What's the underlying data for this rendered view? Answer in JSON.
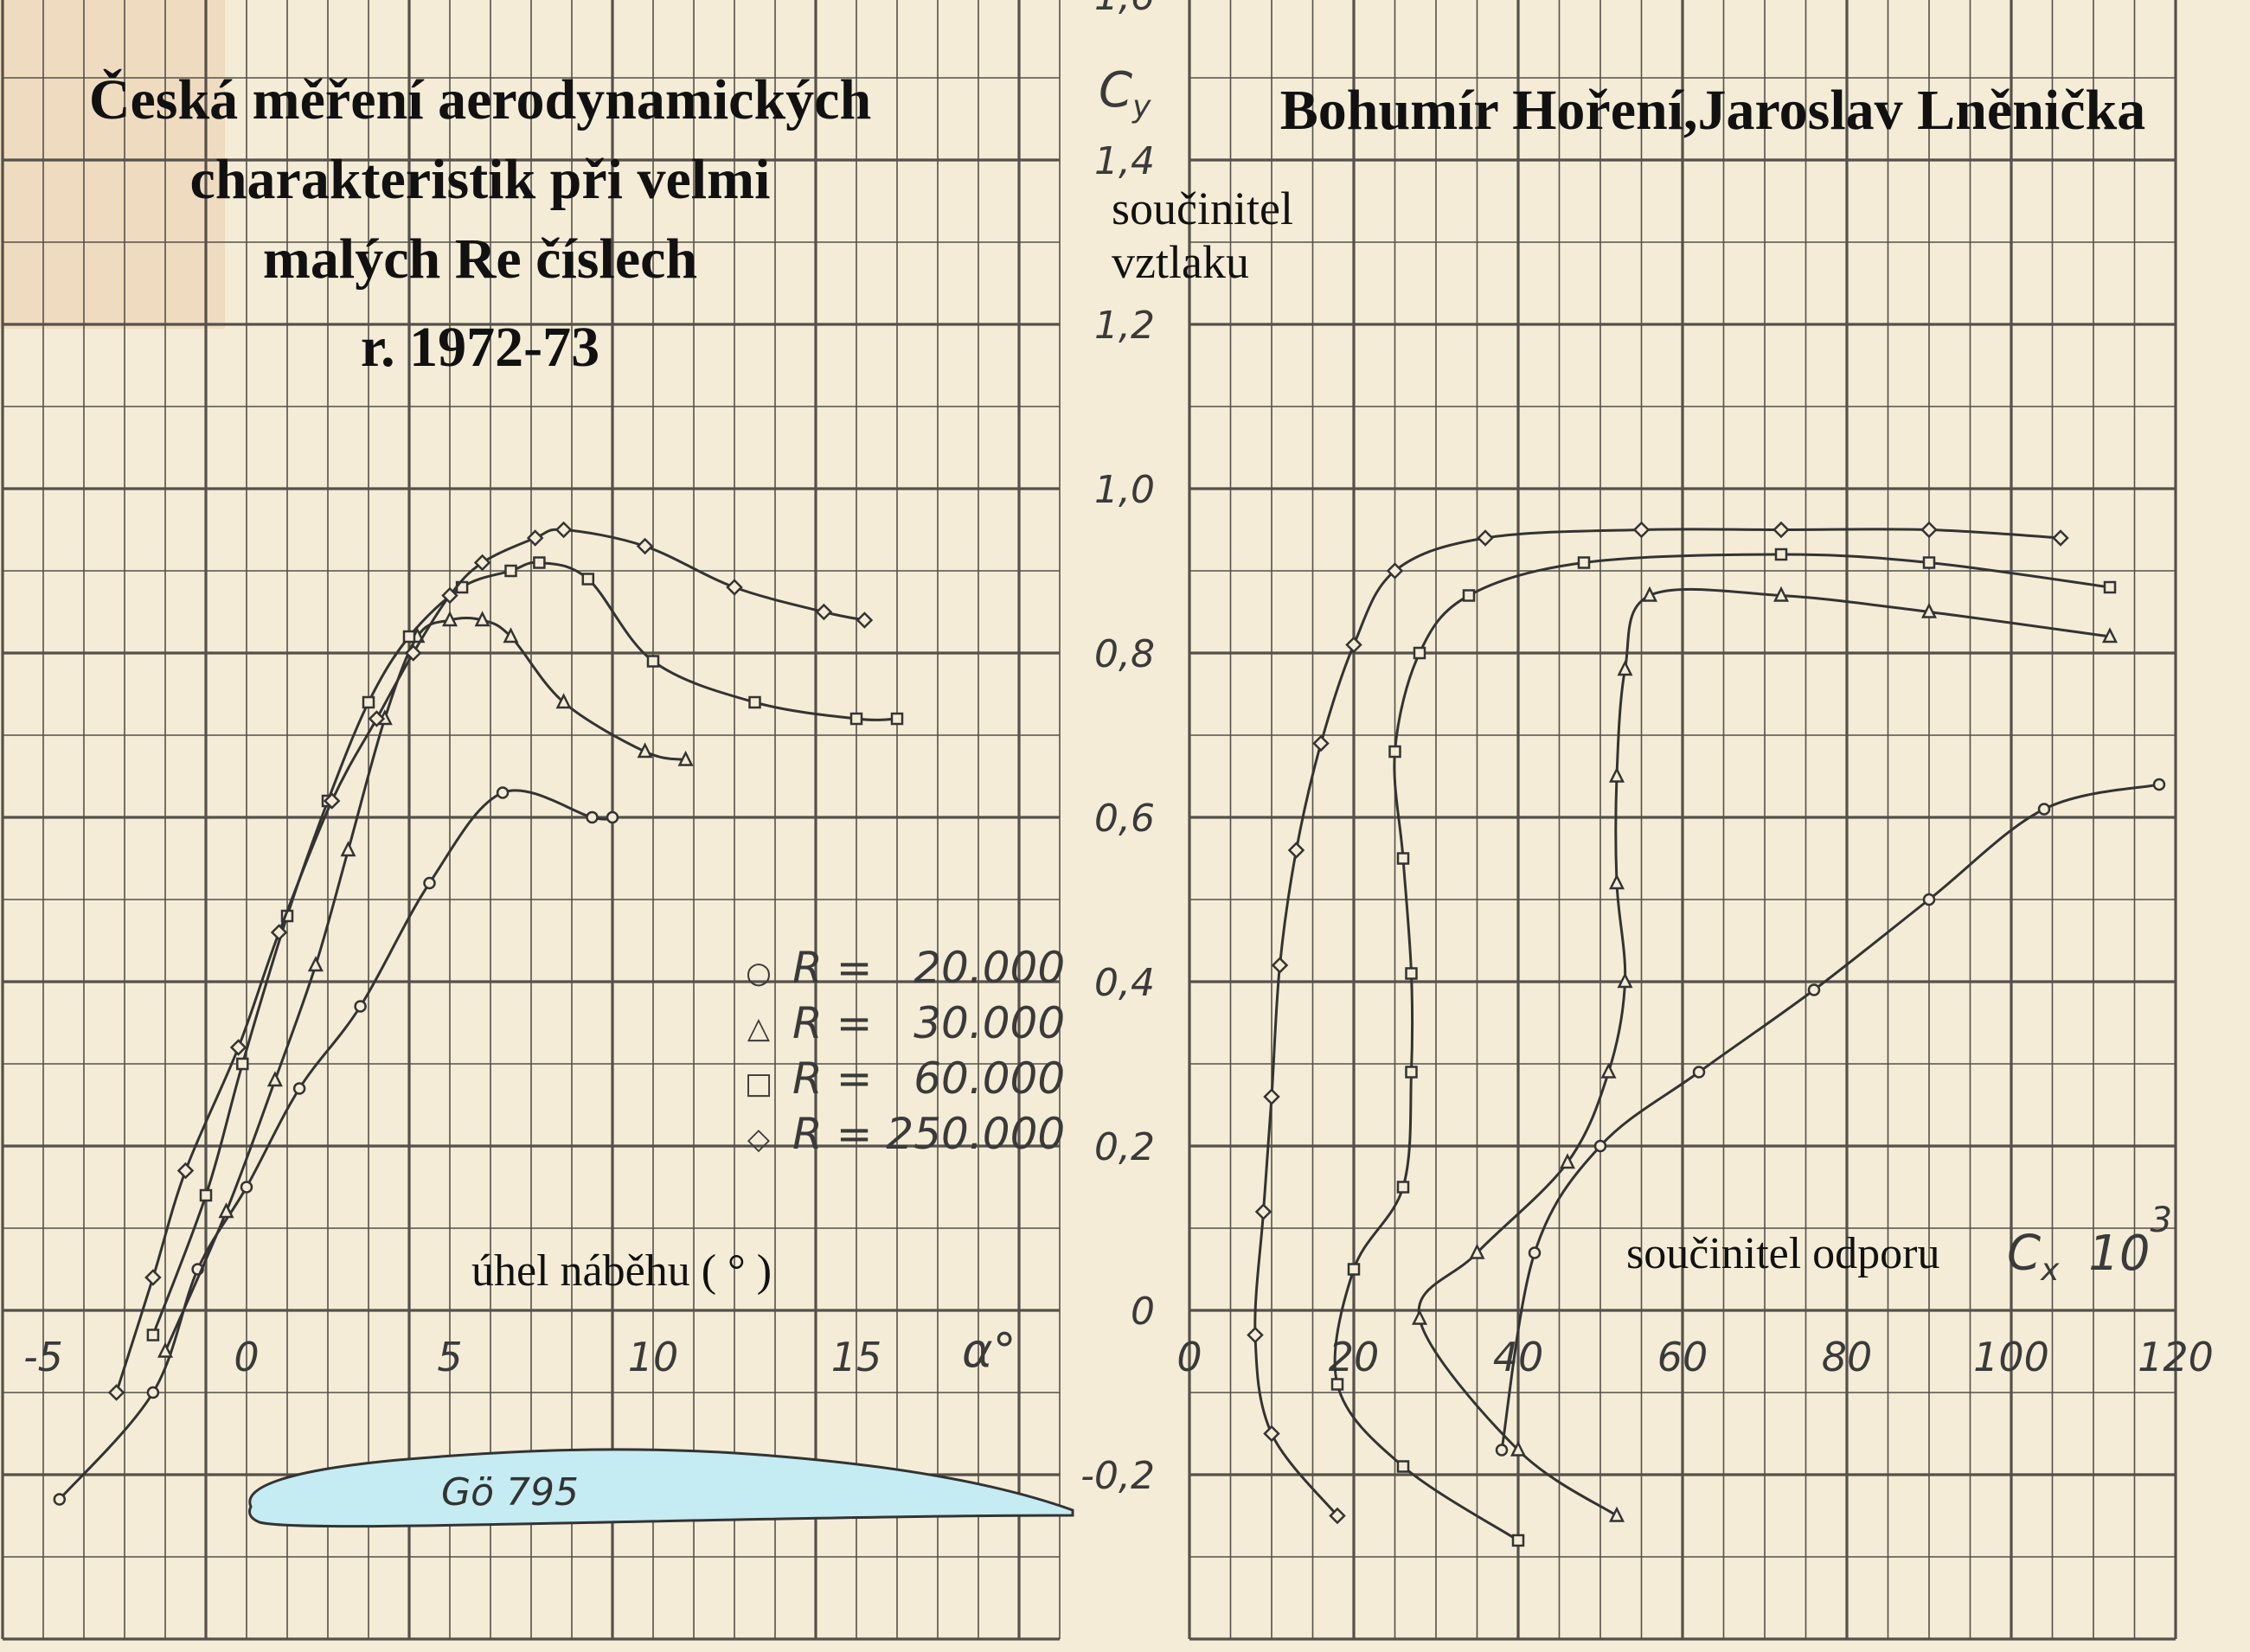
{
  "title": {
    "lines": [
      "Česká měření aerodynamických",
      "charakteristik při velmi",
      "malých Re číslech",
      "r. 1972-73"
    ],
    "authors": "Bohumír Hoření,Jaroslav Lněnička"
  },
  "airfoil": {
    "name": "Gö 795",
    "fill": "#c4ecf2"
  },
  "colors": {
    "paper": "#f4ecd6",
    "grid": "#55504a",
    "ink": "#3a3a3a",
    "text": "#111111"
  },
  "chart_data": [
    {
      "type": "line",
      "description_axes": "lift coefficient vs angle of attack",
      "xlabel": "úhel náběhu ( ° )",
      "x_symbol": "α°",
      "ylabel": "",
      "xlim": [
        -5,
        20
      ],
      "ylim": [
        -0.4,
        1.6
      ],
      "x_ticks": [
        "-5",
        "0",
        "5",
        "10",
        "15"
      ],
      "x_tick_values": [
        -5,
        0,
        5,
        10,
        15
      ],
      "legend_position": "right-middle",
      "series": [
        {
          "name": "R =   20.000",
          "marker": "circle",
          "x": [
            -4.6,
            -2.3,
            -1.2,
            0,
            1.3,
            2.8,
            4.5,
            6.3,
            8.5,
            9.0
          ],
          "y": [
            -0.23,
            -0.1,
            0.05,
            0.15,
            0.27,
            0.37,
            0.52,
            0.63,
            0.6,
            0.6
          ]
        },
        {
          "name": "R =   30.000",
          "marker": "triangle",
          "x": [
            -2.0,
            -0.5,
            0.7,
            1.7,
            2.5,
            3.4,
            4.2,
            5.0,
            5.8,
            6.5,
            7.8,
            9.8,
            10.8
          ],
          "y": [
            -0.05,
            0.12,
            0.28,
            0.42,
            0.56,
            0.72,
            0.82,
            0.84,
            0.84,
            0.82,
            0.74,
            0.68,
            0.67
          ]
        },
        {
          "name": "R =   60.000",
          "marker": "square",
          "x": [
            -2.3,
            -1.0,
            -0.1,
            1.0,
            2.0,
            3.0,
            4.0,
            5.3,
            6.5,
            7.2,
            8.4,
            10.0,
            12.5,
            15.0,
            16.0
          ],
          "y": [
            -0.03,
            0.14,
            0.3,
            0.48,
            0.62,
            0.74,
            0.82,
            0.88,
            0.9,
            0.91,
            0.89,
            0.79,
            0.74,
            0.72,
            0.72
          ]
        },
        {
          "name": "R = 250.000",
          "marker": "diamond",
          "x": [
            -3.2,
            -2.3,
            -1.5,
            -0.2,
            0.8,
            2.1,
            3.2,
            4.1,
            5.0,
            5.8,
            7.1,
            7.8,
            9.8,
            12.0,
            14.2,
            15.2
          ],
          "y": [
            -0.1,
            0.04,
            0.17,
            0.32,
            0.46,
            0.62,
            0.72,
            0.8,
            0.87,
            0.91,
            0.94,
            0.95,
            0.93,
            0.88,
            0.85,
            0.84
          ]
        }
      ]
    },
    {
      "type": "line",
      "description_axes": "lift coefficient vs drag coefficient (polar)",
      "xlabel": "součinitel odporu",
      "x_symbol": "C",
      "x_symbol_sub": "x",
      "x_mult": "10",
      "x_exp": "3",
      "ylabel": "součinitel vztlaku",
      "y_symbol": "C",
      "y_symbol_sub": "y",
      "xlim": [
        0,
        120
      ],
      "ylim": [
        -0.4,
        1.6
      ],
      "x_ticks": [
        "0",
        "20",
        "40",
        "60",
        "80",
        "100",
        "120"
      ],
      "x_tick_values": [
        0,
        20,
        40,
        60,
        80,
        100,
        120
      ],
      "y_ticks": [
        "-0,2",
        "0",
        "0,2",
        "0,4",
        "0,6",
        "0,8",
        "1,0",
        "1,2",
        "1,4",
        "1,6"
      ],
      "y_tick_values": [
        -0.2,
        0,
        0.2,
        0.4,
        0.6,
        0.8,
        1.0,
        1.2,
        1.4,
        1.6
      ],
      "series": [
        {
          "name": "R =   20.000",
          "marker": "circle",
          "x": [
            38,
            42,
            50,
            62,
            76,
            90,
            104,
            118
          ],
          "y": [
            -0.17,
            0.07,
            0.2,
            0.29,
            0.39,
            0.5,
            0.61,
            0.64
          ]
        },
        {
          "name": "R =   30.000",
          "marker": "triangle",
          "x": [
            52,
            40,
            28,
            35,
            46,
            51,
            53,
            52,
            52,
            53,
            56,
            72,
            90,
            112
          ],
          "y": [
            -0.25,
            -0.17,
            -0.01,
            0.07,
            0.18,
            0.29,
            0.4,
            0.52,
            0.65,
            0.78,
            0.87,
            0.87,
            0.85,
            0.82
          ]
        },
        {
          "name": "R =   60.000",
          "marker": "square",
          "x": [
            40,
            26,
            18,
            20,
            26,
            27,
            27,
            26,
            25,
            28,
            34,
            48,
            72,
            90,
            112
          ],
          "y": [
            -0.28,
            -0.19,
            -0.09,
            0.05,
            0.15,
            0.29,
            0.41,
            0.55,
            0.68,
            0.8,
            0.87,
            0.91,
            0.92,
            0.91,
            0.88
          ]
        },
        {
          "name": "R = 250.000",
          "marker": "diamond",
          "x": [
            18,
            10,
            8,
            9,
            10,
            11,
            13,
            16,
            20,
            25,
            36,
            55,
            72,
            90,
            106
          ],
          "y": [
            -0.25,
            -0.15,
            -0.03,
            0.12,
            0.26,
            0.42,
            0.56,
            0.69,
            0.81,
            0.9,
            0.94,
            0.95,
            0.95,
            0.95,
            0.94
          ]
        }
      ]
    }
  ]
}
